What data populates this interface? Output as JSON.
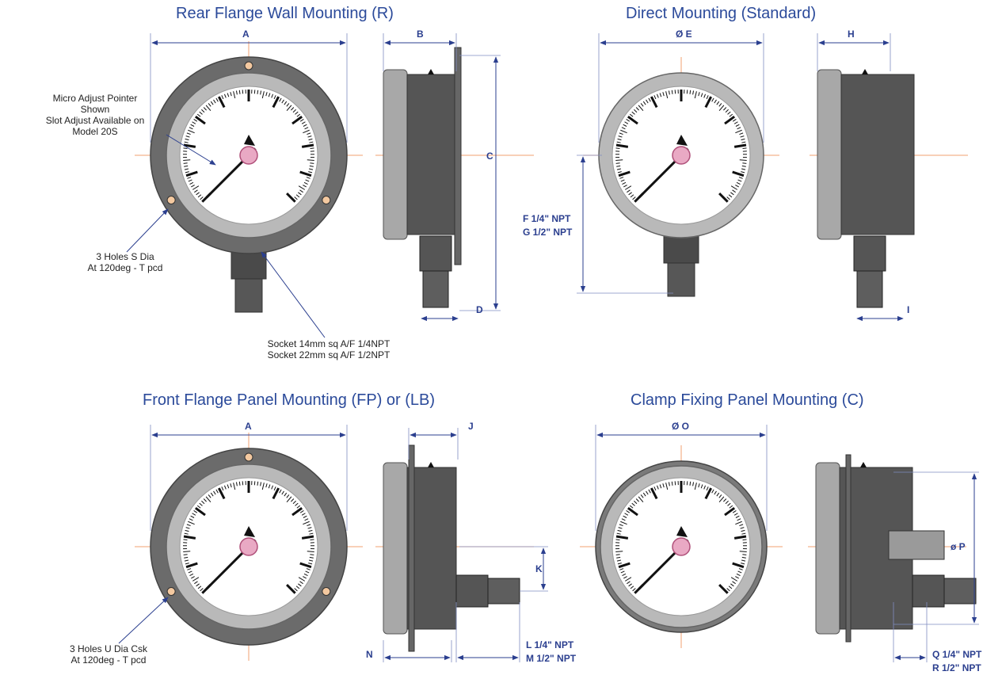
{
  "titles": {
    "rear_flange": "Rear Flange Wall Mounting (R)",
    "direct": "Direct Mounting (Standard)",
    "front_flange": "Front Flange Panel Mounting (FP) or (LB)",
    "clamp": "Clamp Fixing Panel Mounting (C)"
  },
  "notes": {
    "pointer": [
      "Micro Adjust Pointer",
      "Shown",
      "Slot Adjust Available on",
      "Model 20S"
    ],
    "holes_rear": [
      "3 Holes S Dia",
      "At 120deg - T pcd"
    ],
    "socket": [
      "Socket 14mm sq A/F 1/4NPT",
      "Socket 22mm sq A/F 1/2NPT"
    ],
    "holes_front": [
      "3 Holes U Dia Csk",
      "At 120deg - T pcd"
    ]
  },
  "dims": {
    "A": "A",
    "B": "B",
    "C": "C",
    "D": "D",
    "E": "Ø E",
    "F": "F 1/4\" NPT",
    "G": "G 1/2\" NPT",
    "H": "H",
    "I": "I",
    "J": "J",
    "K": "K",
    "L": "L 1/4\" NPT",
    "M": "M 1/2\" NPT",
    "N": "N",
    "O": "Ø O",
    "P": "ø P",
    "Q": "Q 1/4\" NPT",
    "R": "R 1/2\" NPT"
  },
  "colors": {
    "title": "#2b4a9a",
    "dimension": "#2b3f8f",
    "centerline": "#f2a070",
    "flange": "#6b6b6b",
    "bezel": "#b9b9b9",
    "case": "#555555",
    "pointer_hub": "#e9a9c4"
  }
}
